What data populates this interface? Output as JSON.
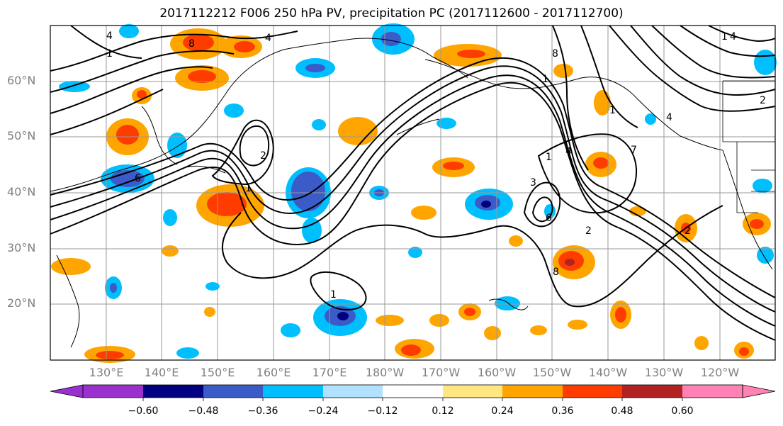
{
  "title": "2017112212 F006 250 hPa PV, precipitation PC (2017112600 - 2017112700)",
  "map": {
    "lat_labels": [
      "60°N",
      "50°N",
      "40°N",
      "30°N",
      "20°N"
    ],
    "lon_labels": [
      "130°E",
      "140°E",
      "150°E",
      "160°E",
      "170°E",
      "180°W",
      "170°W",
      "160°W",
      "150°W",
      "140°W",
      "130°W",
      "120°W"
    ],
    "gridlines": true,
    "contour_labels": [
      "4",
      "1",
      "8",
      "2",
      "4",
      "8",
      "1",
      "2",
      "4",
      "1",
      "6",
      "1",
      "6",
      "3",
      "2",
      "1",
      "4",
      "7",
      "8",
      "2",
      "1",
      "1",
      "4"
    ]
  },
  "colorbar": {
    "ticks": [
      "−0.60",
      "−0.48",
      "−0.36",
      "−0.24",
      "−0.12",
      "0.12",
      "0.24",
      "0.36",
      "0.48",
      "0.60"
    ],
    "colors": [
      "#9b30d0",
      "#000080",
      "#3a5bc8",
      "#00bfff",
      "#b0e2ff",
      "#ffffff",
      "#ffe680",
      "#ffa500",
      "#ff3c00",
      "#b22222",
      "#ff82b4"
    ],
    "extend": "both"
  }
}
